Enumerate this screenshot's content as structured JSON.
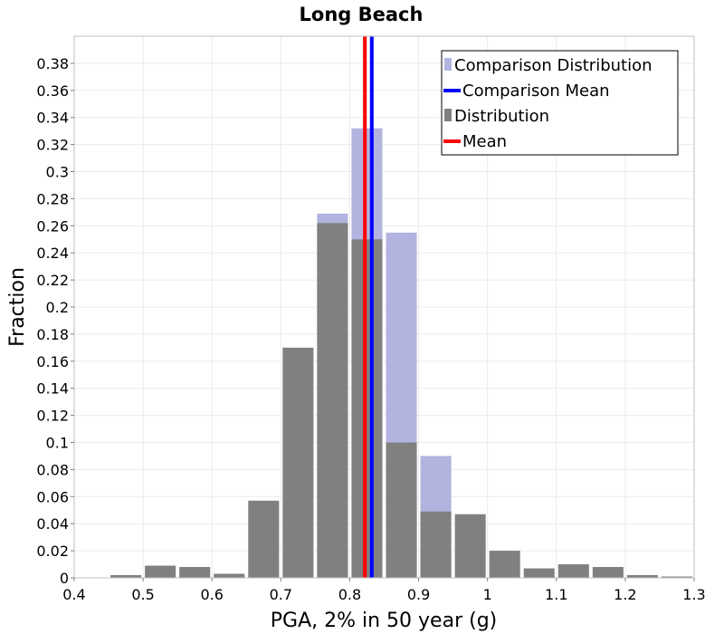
{
  "chart_data": {
    "type": "bar",
    "title": "Long Beach",
    "xlabel": "PGA, 2% in 50 year (g)",
    "ylabel": "Fraction",
    "xlim": [
      0.4,
      1.3
    ],
    "ylim": [
      0,
      0.4
    ],
    "bin_width": 0.05,
    "x_ticks": [
      "0.4",
      "0.5",
      "0.6",
      "0.7",
      "0.8",
      "0.9",
      "1",
      "1.1",
      "1.2",
      "1.3"
    ],
    "y_ticks": [
      "0",
      "0.02",
      "0.04",
      "0.06",
      "0.08",
      "0.1",
      "0.12",
      "0.14",
      "0.16",
      "0.18",
      "0.2",
      "0.22",
      "0.24",
      "0.26",
      "0.28",
      "0.3",
      "0.32",
      "0.34",
      "0.36",
      "0.38"
    ],
    "grid": true,
    "legend_position": "top-right",
    "series": [
      {
        "name": "Comparison Distribution",
        "kind": "bar",
        "color": "#b3b3e0",
        "bins": [
          {
            "center": 0.775,
            "value": 0.269
          },
          {
            "center": 0.825,
            "value": 0.332
          },
          {
            "center": 0.875,
            "value": 0.255
          },
          {
            "center": 0.925,
            "value": 0.09
          }
        ]
      },
      {
        "name": "Comparison Mean",
        "kind": "vline",
        "color": "#0000ff",
        "value": 0.832
      },
      {
        "name": "Distribution",
        "kind": "bar",
        "color": "#808080",
        "bins": [
          {
            "center": 0.475,
            "value": 0.002
          },
          {
            "center": 0.525,
            "value": 0.009
          },
          {
            "center": 0.575,
            "value": 0.008
          },
          {
            "center": 0.625,
            "value": 0.003
          },
          {
            "center": 0.675,
            "value": 0.057
          },
          {
            "center": 0.725,
            "value": 0.17
          },
          {
            "center": 0.775,
            "value": 0.262
          },
          {
            "center": 0.825,
            "value": 0.25
          },
          {
            "center": 0.875,
            "value": 0.1
          },
          {
            "center": 0.925,
            "value": 0.049
          },
          {
            "center": 0.975,
            "value": 0.047
          },
          {
            "center": 1.025,
            "value": 0.02
          },
          {
            "center": 1.075,
            "value": 0.007
          },
          {
            "center": 1.125,
            "value": 0.01
          },
          {
            "center": 1.175,
            "value": 0.008
          },
          {
            "center": 1.225,
            "value": 0.002
          },
          {
            "center": 1.275,
            "value": 0.001
          }
        ]
      },
      {
        "name": "Mean",
        "kind": "vline",
        "color": "#ff0000",
        "value": 0.822
      }
    ]
  }
}
